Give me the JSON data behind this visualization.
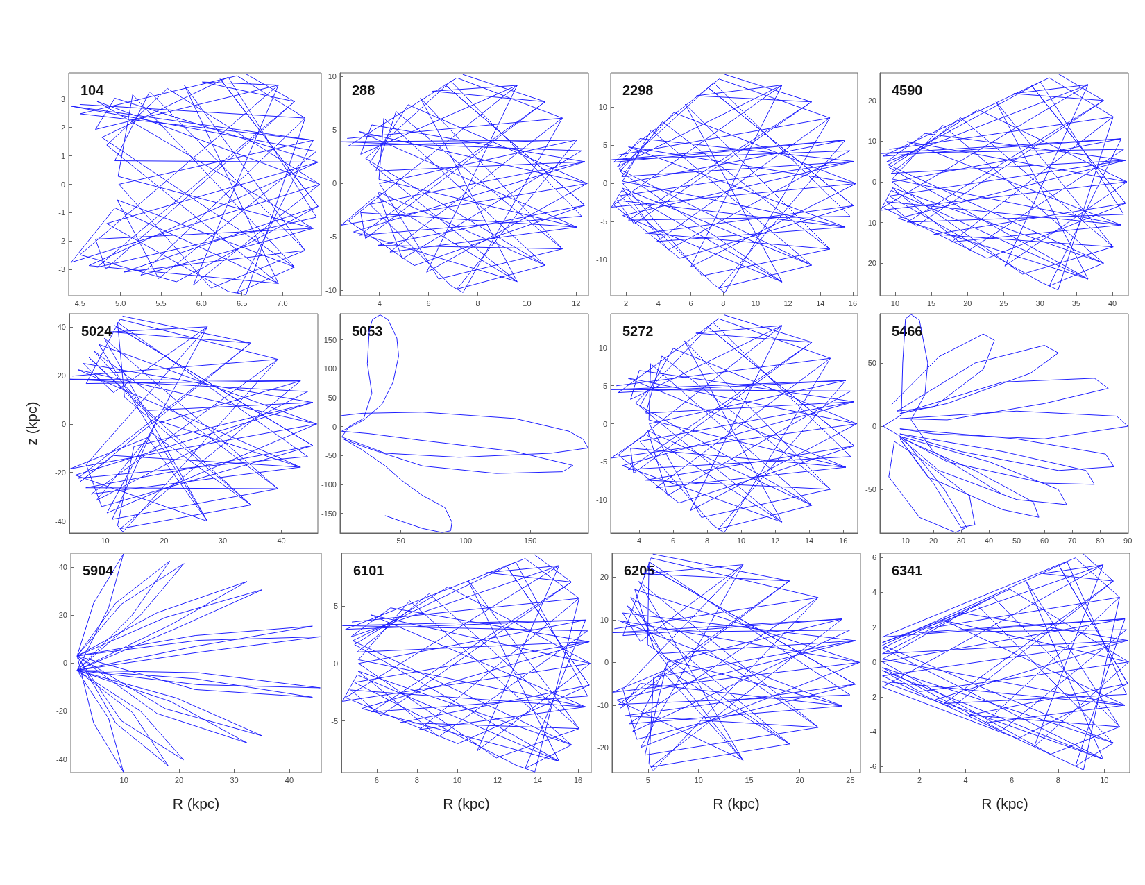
{
  "chart_data": [
    {
      "type": "line",
      "title": "104",
      "color": "#1f1fff",
      "xlim": [
        4.36,
        7.48
      ],
      "xticks": [
        4.5,
        {
          "value": 5,
          "label": "5.0"
        },
        5.5,
        {
          "value": 6,
          "label": "6.0"
        },
        6.5,
        {
          "value": 7,
          "label": "7.0"
        }
      ],
      "ylim": [
        -3.92,
        3.92
      ],
      "yticks": [
        -3,
        -2,
        -1,
        0,
        1,
        2,
        3
      ],
      "x": [
        4.5,
        7.28,
        6.55,
        6.33,
        4.83,
        7.44,
        4.93,
        5.36,
        7.28,
        5.04,
        7.44,
        6.23,
        7.44,
        5.69,
        4.5,
        6.95,
        4.69,
        4.93,
        7.44,
        4.61,
        6.95,
        5.79,
        7.28,
        6.12,
        4.98,
        7.38,
        4.5,
        6.44,
        7.28,
        5.25,
        7.38,
        4.71,
        7.46,
        4.39,
        4.93,
        6.95,
        4.83,
        5.58,
        7.46,
        5.9,
        6.95,
        6.01,
        7.15,
        4.82,
        4.69,
        7.38,
        4.97,
        5.15,
        7.15,
        6.44,
        7.38,
        4.39,
        7.42,
        5.47,
        4.96,
        7.15,
        4.77,
        6.33,
        7.42,
        4.71,
        7.15,
        6.55
      ],
      "values": [
        2.81,
        2.33,
        -3.88,
        -3.77,
        -1.38,
        0.78,
        0.83,
        3.26,
        -2.33,
        -3.09,
        -0.78,
        3.71,
        -0.78,
        -3.43,
        -2.48,
        3.49,
        1.93,
        3.03,
        0.78,
        -2.86,
        -3.49,
        3.48,
        -2.33,
        -3.65,
        0,
        1.55,
        2.48,
        3.82,
        2.33,
        -3.2,
        -1.55,
        2.92,
        0,
        -2.75,
        -0.83,
        -3.49,
        1.38,
        3.37,
        0,
        -3.54,
        3.49,
        3.6,
        2.91,
        -2.98,
        -1.93,
        -1.55,
        0.28,
        3.15,
        -2.91,
        -3.82,
        1.55,
        2.75,
        1.16,
        -3.32,
        -0.55,
        -2.91,
        1.65,
        3.77,
        -1.16,
        -2.92,
        2.91,
        3.88
      ]
    },
    {
      "type": "line",
      "title": "288",
      "color": "#1f1fff",
      "xlim": [
        2.4,
        12.5
      ],
      "xticks": [
        4,
        6,
        8,
        10,
        12
      ],
      "ylim": [
        -10.5,
        10.35
      ],
      "yticks": [
        -10,
        -5,
        0,
        5,
        10
      ],
      "x": [
        2.7,
        11.44,
        7.4,
        6.91,
        3.61,
        12.35,
        3.86,
        4.68,
        11.44,
        3.94,
        12.35,
        6.66,
        12.35,
        5.42,
        2.74,
        9.6,
        3.24,
        3.69,
        12.35,
        2.95,
        9.6,
        5.67,
        11.44,
        6.41,
        4,
        12.03,
        2.74,
        7.15,
        11.44,
        4.43,
        12.03,
        3.19,
        12.45,
        2.45,
        3.86,
        9.6,
        3.61,
        5.17,
        12.45,
        5.92,
        9.6,
        6.16,
        10.74,
        3.44,
        3.24,
        12.03,
        3.98,
        4.18,
        10.74,
        7.15,
        12.03,
        2.45,
        12.22,
        4.93,
        3.94,
        10.74,
        3.44,
        6.91,
        12.22,
        3.19,
        10.74,
        7.4
      ],
      "values": [
        4.22,
        6.12,
        -10.2,
        -9.57,
        -1.95,
        2.04,
        1.17,
        6.74,
        -6.12,
        -5.79,
        -2.04,
        9.26,
        -2.04,
        -7.68,
        -3.51,
        9.18,
        2.73,
        5.48,
        2.04,
        -4.53,
        -9.18,
        8,
        -6.12,
        -8.94,
        0,
        4.08,
        3.51,
        9.89,
        6.12,
        -6.42,
        -4.08,
        4.85,
        0,
        -3.9,
        -1.17,
        -9.18,
        1.95,
        7.37,
        0,
        -8.31,
        9.18,
        8.63,
        7.65,
        -5.16,
        -2.73,
        -4.08,
        0.39,
        6.11,
        -7.65,
        -9.89,
        4.08,
        3.9,
        3.06,
        -7.05,
        -0.78,
        -7.65,
        2.34,
        9.57,
        -3.06,
        -4.85,
        7.65,
        10.2
      ]
    },
    {
      "type": "line",
      "title": "2298",
      "color": "#1f1fff",
      "xlim": [
        1.05,
        16.3
      ],
      "xticks": [
        2,
        4,
        6,
        8,
        10,
        12,
        14,
        16
      ],
      "ylim": [
        -14.7,
        14.5
      ],
      "yticks": [
        -10,
        -5,
        0,
        5,
        10
      ],
      "x": [
        1.45,
        14.58,
        8.1,
        7.4,
        1.63,
        16.04,
        1.74,
        4.25,
        14.58,
        3.2,
        16.04,
        7.05,
        16.04,
        5.3,
        1.23,
        11.63,
        1.46,
        2.85,
        16.04,
        1.8,
        11.63,
        5.65,
        14.58,
        6.7,
        1.8,
        15.53,
        1.23,
        7.75,
        14.58,
        3.9,
        15.53,
        2.15,
        16.2,
        1.1,
        1.74,
        11.63,
        1.63,
        4.95,
        16.2,
        6,
        11.63,
        6.35,
        13.45,
        2.5,
        1.46,
        15.53,
        1.79,
        3.55,
        13.45,
        7.75,
        15.53,
        1.1,
        15.83,
        4.6,
        1.77,
        13.45,
        1.55,
        7.4,
        15.83,
        2.15,
        13.45,
        8.1
      ],
      "values": [
        3.7,
        8.6,
        -14.3,
        -13.2,
        -1.6,
        2.9,
        0.9,
        8.1,
        -8.6,
        -6.5,
        -2.9,
        12.6,
        -2.9,
        -9.8,
        -2.8,
        12.9,
        2.2,
        5.9,
        2.9,
        -4.2,
        -12.9,
        10.4,
        -8.6,
        -12.1,
        0,
        5.7,
        2.8,
        13.7,
        8.6,
        -7.6,
        -5.7,
        4.8,
        0,
        -3.1,
        -0.9,
        -12.9,
        1.6,
        9.3,
        0,
        -10.9,
        12.9,
        11.5,
        10.7,
        -5.3,
        -2.2,
        -5.7,
        0.3,
        7,
        -10.7,
        -13.7,
        5.7,
        3.1,
        4.3,
        -8.7,
        -0.6,
        -10.7,
        1.9,
        13.2,
        -4.3,
        -4.8,
        10.7,
        14.3
      ]
    },
    {
      "type": "line",
      "title": "4590",
      "color": "#1f1fff",
      "xlim": [
        7.9,
        42.2
      ],
      "xticks": [
        10,
        15,
        20,
        25,
        30,
        35,
        40
      ],
      "ylim": [
        -28,
        26.8
      ],
      "yticks": [
        -20,
        -10,
        0,
        10,
        20
      ],
      "x": [
        9.23,
        40.1,
        32.5,
        30.05,
        9.2,
        41.81,
        9.46,
        19.03,
        40.1,
        15.35,
        41.81,
        28.83,
        41.81,
        22.7,
        8.3,
        36.64,
        8.82,
        14.13,
        41.81,
        10.45,
        36.64,
        23.93,
        40.1,
        27.6,
        9.6,
        41.21,
        8.3,
        31.28,
        40.1,
        17.8,
        41.21,
        11.68,
        42,
        8,
        9.46,
        36.64,
        9.2,
        21.48,
        42,
        25.15,
        36.64,
        26.38,
        38.78,
        12.9,
        8.82,
        41.21,
        9.58,
        16.58,
        38.78,
        31.28,
        41.21,
        8,
        41.56,
        20.25,
        9.54,
        38.78,
        9.02,
        30.05,
        41.56,
        11.68,
        38.78,
        32.5
      ],
      "values": [
        8,
        16,
        -26.6,
        -24.6,
        -3.5,
        5.3,
        2.1,
        15.8,
        -16,
        -12.9,
        -5.3,
        23.7,
        -5.3,
        -18.8,
        -6.3,
        23.9,
        4.9,
        11.9,
        5.3,
        -9,
        -23.9,
        19.7,
        -16,
        -22.7,
        0,
        10.6,
        6.3,
        25.6,
        16,
        -14.8,
        -10.6,
        9.9,
        0,
        -7,
        -2.1,
        -23.9,
        3.5,
        17.8,
        0,
        -20.7,
        23.9,
        21.7,
        20,
        -10.9,
        -4.9,
        -10.6,
        0.7,
        13.9,
        -20,
        -25.6,
        10.6,
        7,
        8,
        -16.8,
        -1.4,
        -20,
        4.2,
        24.6,
        -8,
        -9.9,
        20,
        26.6
      ]
    },
    {
      "type": "line",
      "title": "5024",
      "ylabel": "z (kpc)",
      "color": "#1f1fff",
      "xlim": [
        3.9,
        46.2
      ],
      "xticks": [
        10,
        20,
        30,
        40
      ],
      "ylim": [
        -45,
        45.5
      ],
      "yticks": [
        -40,
        -20,
        0,
        20,
        40
      ],
      "x": [
        4.45,
        39.4,
        13,
        12.1,
        14.88,
        45.34,
        17.2,
        8.05,
        39.4,
        6.7,
        45.34,
        11.65,
        45.34,
        9.4,
        6.76,
        27.39,
        11.4,
        6.25,
        45.34,
        4.9,
        27.39,
        9.85,
        39.4,
        11.2,
        18.5,
        43.26,
        6.76,
        12.55,
        39.4,
        7.6,
        43.26,
        5.35,
        46,
        4,
        17.2,
        27.39,
        14.88,
        8.95,
        46,
        10.3,
        27.39,
        10.75,
        34.81,
        5.8,
        11.4,
        43.26,
        18.36,
        7.15,
        34.81,
        12.55,
        43.26,
        4,
        44.48,
        8.5,
        17.92,
        34.81,
        13.28,
        12.1,
        44.48,
        5.35,
        34.81,
        13
      ],
      "values": [
        19.8,
        26.7,
        -44.5,
        -41.9,
        -9.3,
        8.9,
        5.6,
        30.2,
        -26.7,
        -26.3,
        -8.9,
        40.6,
        -8.9,
        -34.1,
        -16.7,
        40.1,
        13,
        25,
        8.9,
        -21.1,
        -40.1,
        35.4,
        -26.7,
        -39.3,
        0,
        17.8,
        16.7,
        43.2,
        26.7,
        -28.9,
        -17.8,
        22.4,
        0,
        -18.5,
        -5.6,
        -40.1,
        9.3,
        32.8,
        0,
        -36.7,
        40.1,
        38,
        33.4,
        -23.7,
        -13,
        -17.8,
        1.9,
        27.6,
        -33.4,
        -43.2,
        17.8,
        18.5,
        13.4,
        -31.5,
        -3.7,
        -33.4,
        11.1,
        41.9,
        -13.4,
        -22.4,
        33.4,
        44.5
      ]
    },
    {
      "type": "line",
      "title": "5053",
      "color": "#1f1fff",
      "xlim": [
        3,
        195
      ],
      "xticks": [
        50,
        100,
        150
      ],
      "ylim": [
        -184,
        195
      ],
      "yticks": [
        -150,
        -100,
        -50,
        0,
        50,
        100,
        150
      ],
      "x": [
        38,
        66.8,
        82,
        88.5,
        89.5,
        84,
        66.8,
        50,
        38,
        20,
        6,
        24,
        66.8,
        123.6,
        175,
        183,
        138,
        66.8,
        25,
        4.3,
        21.3,
        35.5,
        44,
        48.3,
        46.9,
        40,
        34,
        28,
        25.6,
        24.1,
        27.6,
        21.3,
        10,
        4.3,
        38,
        95,
        166,
        194.6,
        191,
        180,
        138,
        66.8,
        20,
        4.3
      ],
      "values": [
        -154,
        -176,
        -183,
        -180,
        -165,
        -140,
        -119,
        -92,
        -68,
        -40,
        -22,
        -37,
        -68,
        -81,
        -78,
        -67,
        -43,
        -24,
        -12,
        -8,
        11,
        39,
        77,
        122,
        153,
        185,
        193,
        185,
        166,
        109,
        58,
        14,
        0,
        -18,
        -46,
        -53,
        -46,
        -37,
        -22,
        -8,
        14,
        25,
        23,
        19
      ]
    },
    {
      "type": "line",
      "title": "5272",
      "color": "#1f1fff",
      "xlim": [
        2.33,
        16.85
      ],
      "xticks": [
        4,
        6,
        8,
        10,
        12,
        14,
        16
      ],
      "ylim": [
        -14.35,
        14.45
      ],
      "yticks": [
        -10,
        -5,
        0,
        5,
        10
      ],
      "x": [
        2.68,
        15.24,
        9,
        8.34,
        4.04,
        16.64,
        4.4,
        5.34,
        15.24,
        4.35,
        16.64,
        8,
        16.64,
        6.34,
        2.78,
        12.4,
        3.5,
        4.01,
        16.64,
        3.02,
        12.4,
        6.67,
        15.24,
        7.67,
        4.6,
        16.15,
        2.78,
        8.67,
        15.24,
        5.01,
        16.15,
        3.35,
        16.8,
        2.35,
        4.4,
        12.4,
        4.04,
        6.01,
        16.8,
        7.01,
        12.4,
        7.34,
        14.16,
        3.68,
        3.5,
        16.15,
        4.58,
        4.68,
        14.16,
        8.67,
        16.15,
        2.35,
        16.44,
        5.68,
        4.51,
        14.16,
        3.79,
        8.34,
        16.44,
        3.35,
        14.16,
        9
      ],
      "values": [
        5,
        8.6,
        -14.3,
        -13.3,
        -2.3,
        2.9,
        1.4,
        8.9,
        -8.6,
        -7.4,
        -2.9,
        12.8,
        -2.9,
        -10.4,
        -4.1,
        12.9,
        3.2,
        7,
        2.9,
        -5.5,
        -12.9,
        10.9,
        -8.6,
        -12.3,
        0,
        5.7,
        4.1,
        13.8,
        8.6,
        -8.4,
        -5.7,
        6,
        0,
        -4.5,
        -1.4,
        -12.9,
        2.3,
        9.9,
        0,
        -11.4,
        12.9,
        11.9,
        10.7,
        -6.5,
        -3.2,
        -5.7,
        0.5,
        7.9,
        -10.7,
        -13.8,
        5.7,
        4.5,
        4.3,
        -9.4,
        -0.9,
        -10.7,
        2.7,
        13.3,
        -4.3,
        -6,
        10.7,
        14.3
      ]
    },
    {
      "type": "line",
      "title": "5466",
      "color": "#1f1fff",
      "xlim": [
        0.8,
        90.2
      ],
      "xticks": [
        10,
        20,
        30,
        40,
        50,
        60,
        70,
        80,
        90
      ],
      "ylim": [
        -84.5,
        89
      ],
      "yticks": [
        -50,
        0,
        50
      ],
      "x": [
        5,
        22,
        38,
        42,
        38,
        20,
        7,
        35,
        60,
        65,
        55,
        25,
        8,
        45,
        78,
        83,
        60,
        25,
        8,
        50,
        86,
        90,
        60,
        20,
        8,
        50,
        82,
        85,
        65,
        30,
        8,
        45,
        75,
        78,
        60,
        25,
        8,
        40,
        65,
        68,
        50,
        22,
        8,
        35,
        56,
        58,
        45,
        18,
        8,
        20,
        30,
        35,
        33,
        15,
        6,
        4,
        15,
        28,
        32,
        24,
        9,
        2,
        8.5,
        9,
        10,
        12,
        15,
        18,
        17,
        12,
        20,
        45
      ],
      "values": [
        17,
        55,
        73,
        68,
        45,
        15,
        12,
        50,
        64,
        58,
        42,
        18,
        10,
        35,
        38,
        30,
        18,
        5,
        6,
        12,
        8,
        0,
        -10,
        -6,
        -2,
        -10,
        -22,
        -32,
        -35,
        -20,
        -6,
        -20,
        -35,
        -46,
        -45,
        -28,
        -8,
        -28,
        -50,
        -62,
        -58,
        -35,
        -9,
        -35,
        -60,
        -72,
        -66,
        -40,
        -10,
        -45,
        -80,
        -78,
        -55,
        -25,
        -12,
        -40,
        -72,
        -84,
        -80,
        -50,
        -9,
        0,
        9,
        50,
        85,
        88.5,
        84,
        50,
        25,
        5,
        -20,
        -54
      ]
    },
    {
      "type": "line",
      "title": "5904",
      "xlabel": "R (kpc)",
      "color": "#1f1fff",
      "xlim": [
        0.35,
        45.8
      ],
      "xticks": [
        10,
        20,
        30,
        40
      ],
      "ylim": [
        -45.6,
        45.8
      ],
      "yticks": [
        -40,
        -20,
        0,
        20,
        40
      ],
      "x": [
        1.5,
        4.5,
        9.9,
        7.2,
        1.5,
        7.2,
        9.9,
        4.5,
        1.5,
        8.5,
        18.3,
        11.5,
        1.5,
        11.5,
        18,
        8.5,
        1.5,
        9.5,
        20.9,
        13,
        1.5,
        13,
        20.8,
        9.5,
        1.5,
        16,
        32.3,
        18.5,
        1.5,
        18.5,
        32.3,
        16,
        1.5,
        17.5,
        35.1,
        19.5,
        1.5,
        19.5,
        35.1,
        17.5,
        1.5,
        22.9,
        44.2,
        23,
        1.5,
        22.9,
        44.2,
        22.9,
        1.5,
        23.5,
        45.6,
        23.5,
        1.5,
        23.5,
        45.6,
        23.5,
        1.5
      ],
      "values": [
        3,
        25,
        45.5,
        23,
        -3,
        -23,
        -45.4,
        -25,
        3,
        25,
        42.5,
        20,
        -3,
        -20.5,
        -42.7,
        -25,
        3,
        24.5,
        41.5,
        20,
        -3,
        -20,
        -40.3,
        -24,
        3,
        21,
        34,
        16,
        -3,
        -16,
        -33.2,
        -21,
        3,
        19,
        30.6,
        14.5,
        -3,
        -14.5,
        -30.3,
        -19,
        3,
        11.5,
        15.4,
        7,
        -3,
        -6.5,
        -14.2,
        -11,
        3,
        9.5,
        11,
        4.5,
        -3,
        -4,
        -10.3,
        -9,
        -3
      ]
    },
    {
      "type": "line",
      "title": "6101",
      "xlabel": "R (kpc)",
      "color": "#1f1fff",
      "xlim": [
        4.25,
        16.65
      ],
      "xticks": [
        6,
        8,
        10,
        12,
        14,
        16
      ],
      "ylim": [
        -9.5,
        9.6
      ],
      "yticks": [
        -5,
        0,
        5
      ],
      "x": [
        4.78,
        16.05,
        13.85,
        12.9,
        4.9,
        16.55,
        5.03,
        8.6,
        16.05,
        7.17,
        16.55,
        12.42,
        16.55,
        10.03,
        4.45,
        15.05,
        4.71,
        6.69,
        16.55,
        5.26,
        15.05,
        10.51,
        16.05,
        11.94,
        5.1,
        16.37,
        4.45,
        13.37,
        16.05,
        8.12,
        16.37,
        5.73,
        16.6,
        4.3,
        5.03,
        15.05,
        4.9,
        9.55,
        16.6,
        10.99,
        15.05,
        11.46,
        15.67,
        6.21,
        4.71,
        16.37,
        5.09,
        7.64,
        15.67,
        13.37,
        16.37,
        4.3,
        16.47,
        9.08,
        5.07,
        15.67,
        4.81,
        12.9,
        16.47,
        5.73,
        15.67,
        13.85
      ],
      "values": [
        3.61,
        5.67,
        -9.45,
        -8.84,
        -1.65,
        1.89,
        0.99,
        6.07,
        -5.67,
        -5.15,
        -1.89,
        8.53,
        -1.89,
        -6.99,
        -2.97,
        8.51,
        2.31,
        4.84,
        1.89,
        -3.92,
        -8.51,
        7.3,
        -5.67,
        -8.22,
        0,
        3.78,
        2.97,
        9.14,
        5.67,
        -5.76,
        -3.78,
        4.22,
        0,
        -3.3,
        -0.99,
        -8.51,
        1.65,
        6.68,
        0,
        -7.61,
        8.51,
        7.91,
        7.09,
        -4.53,
        -2.31,
        -3.78,
        0.33,
        5.45,
        -7.09,
        -9.14,
        3.78,
        3.3,
        2.84,
        -6.38,
        -0.66,
        -7.09,
        1.98,
        8.84,
        -2.84,
        -4.22,
        7.09,
        9.45
      ]
    },
    {
      "type": "line",
      "title": "6205",
      "xlabel": "R (kpc)",
      "color": "#1f1fff",
      "xlim": [
        1.45,
        26
      ],
      "xticks": [
        5,
        10,
        15,
        20,
        25
      ],
      "ylim": [
        -25.8,
        25.6
      ],
      "yticks": [
        -20,
        -10,
        0,
        10,
        20
      ],
      "x": [
        1.7,
        21.82,
        5.5,
        5.1,
        5.55,
        25.49,
        6.41,
        3.3,
        21.82,
        2.7,
        25.49,
        4.9,
        25.49,
        3.9,
        2.53,
        14.39,
        4.25,
        2.5,
        25.49,
        1.9,
        14.39,
        4.1,
        21.82,
        4.7,
        6.9,
        24.21,
        2.53,
        5.3,
        21.82,
        3.1,
        24.21,
        2.1,
        25.9,
        1.5,
        6.41,
        14.39,
        5.55,
        3.7,
        25.9,
        4.3,
        14.39,
        4.5,
        18.98,
        2.3,
        4.25,
        24.21,
        6.85,
        2.9,
        18.98,
        5.3,
        24.21,
        1.5,
        24.96,
        3.5,
        6.68,
        18.98,
        4.96,
        5.1,
        24.96,
        2.1,
        18.98,
        5.5
      ],
      "values": [
        7.9,
        15.2,
        -25.4,
        -23.6,
        -3.5,
        5.1,
        2.1,
        15.3,
        -15.2,
        -12.5,
        -5.1,
        22.6,
        -5.1,
        -18,
        -6.3,
        22.9,
        4.9,
        11.6,
        5.1,
        -8.8,
        -22.9,
        19,
        -15.2,
        -21.7,
        0,
        10.2,
        6.3,
        24.5,
        15.2,
        -14.4,
        -10.2,
        9.8,
        0,
        -7,
        -2.1,
        -22.9,
        3.5,
        17.1,
        0,
        -19.9,
        22.9,
        20.8,
        19.1,
        -10.7,
        -4.9,
        -10.2,
        0.7,
        13.4,
        -19.1,
        -24.5,
        10.2,
        7,
        7.6,
        -16.2,
        -1.4,
        -19.1,
        4.2,
        23.6,
        -7.6,
        -9.8,
        19.1,
        25.4
      ]
    },
    {
      "type": "line",
      "title": "6341",
      "xlabel": "R (kpc)",
      "color": "#1f1fff",
      "xlim": [
        0.29,
        11.1
      ],
      "xticks": [
        2,
        4,
        6,
        8,
        10
      ],
      "ylim": [
        -6.35,
        6.25
      ],
      "yticks": [
        -6,
        -4,
        -2,
        0,
        2,
        4,
        6
      ],
      "x": [
        2.36,
        10.66,
        9.1,
        8.39,
        0.4,
        11.01,
        0.4,
        5.2,
        10.66,
        4.13,
        11.01,
        8.04,
        11.01,
        6.26,
        0.4,
        9.95,
        0.4,
        3.78,
        11.01,
        2.71,
        9.95,
        6.62,
        10.66,
        7.68,
        0.4,
        10.89,
        0.4,
        8.75,
        10.66,
        4.84,
        10.89,
        3.07,
        11.05,
        2,
        0.4,
        9.95,
        0.4,
        5.91,
        11.05,
        6.97,
        9.95,
        7.33,
        10.39,
        3.42,
        0.4,
        10.89,
        0.4,
        4.49,
        10.39,
        8.75,
        10.89,
        2,
        10.96,
        5.55,
        0.4,
        10.39,
        0.4,
        8.39,
        10.96,
        3.07,
        10.39,
        9.1
      ],
      "values": [
        1.93,
        3.72,
        -6.2,
        -5.75,
        -0.8,
        1.24,
        0.48,
        3.73,
        -3.72,
        -3.05,
        -1.24,
        5.53,
        -1.24,
        -4.4,
        -1.44,
        5.58,
        1.12,
        2.83,
        1.24,
        -2.15,
        -5.58,
        4.63,
        -3.72,
        -5.3,
        0,
        2.48,
        1.44,
        5.98,
        3.72,
        -3.5,
        -2.48,
        2.38,
        0,
        -1.7,
        -0.48,
        -5.58,
        0.8,
        4.18,
        0,
        -4.85,
        5.58,
        5.08,
        4.65,
        -2.6,
        -1.12,
        -2.48,
        0.16,
        3.28,
        -4.65,
        -5.98,
        2.48,
        1.7,
        1.86,
        -3.95,
        -0.32,
        -4.65,
        0.96,
        5.75,
        -1.86,
        -2.38,
        4.65,
        6.2
      ]
    }
  ]
}
